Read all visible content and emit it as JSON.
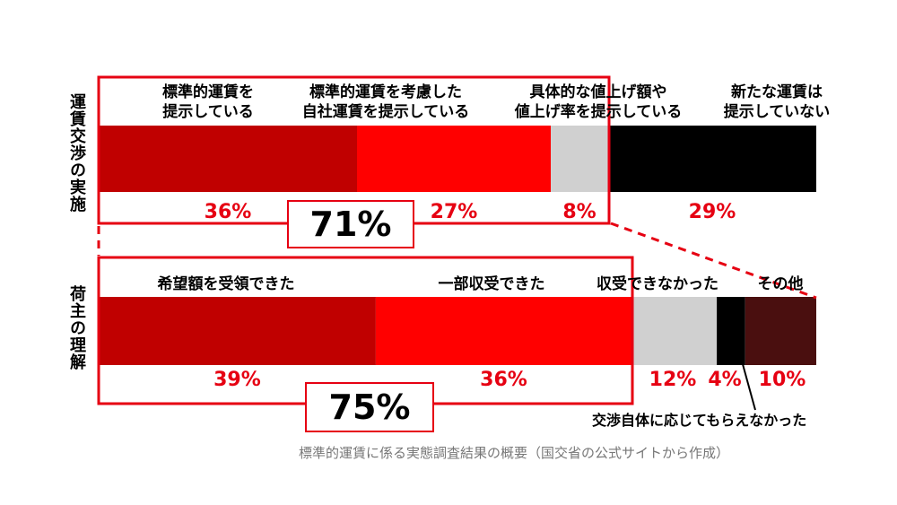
{
  "chart_data": [
    {
      "type": "bar",
      "orientation": "horizontal-stacked",
      "row_label": "運賃交渉の実施",
      "categories": [
        "標準的運賃を\n提示している",
        "標準的運賃を考慮した\n自社運賃を提示している",
        "具体的な値上げ額や\n値上げ率を提示している",
        "新たな運賃は\n提示していない"
      ],
      "values": [
        36,
        27,
        8,
        29
      ],
      "value_labels": [
        "36%",
        "27%",
        "8%",
        "29%"
      ],
      "colors": [
        "#c00000",
        "#ff0000",
        "#d0d0d0",
        "#000000"
      ],
      "label_colors": [
        "#e60012",
        "#e60012",
        "#e60012",
        "#e60012"
      ],
      "total_label": "71%"
    },
    {
      "type": "bar",
      "orientation": "horizontal-stacked",
      "row_label": "荷主の理解",
      "categories": [
        "希望額を受領できた",
        "一部収受できた",
        "収受できなかった",
        "",
        "その他"
      ],
      "values": [
        39,
        36,
        12,
        4,
        10
      ],
      "value_labels": [
        "39%",
        "36%",
        "12%",
        "4%",
        "10%"
      ],
      "colors": [
        "#c00000",
        "#ff0000",
        "#d0d0d0",
        "#000000",
        "#4a0f0f"
      ],
      "label_colors": [
        "#e60012",
        "#e60012",
        "#e60012",
        "#e60012",
        "#e60012"
      ],
      "total_label": "75%",
      "callout": "交渉自体に応じてもらえなかった"
    }
  ],
  "source": "標準的運賃に係る実態調査結果の概要（国交省の公式サイトから作成）",
  "colors": {
    "accent": "#e60012"
  }
}
